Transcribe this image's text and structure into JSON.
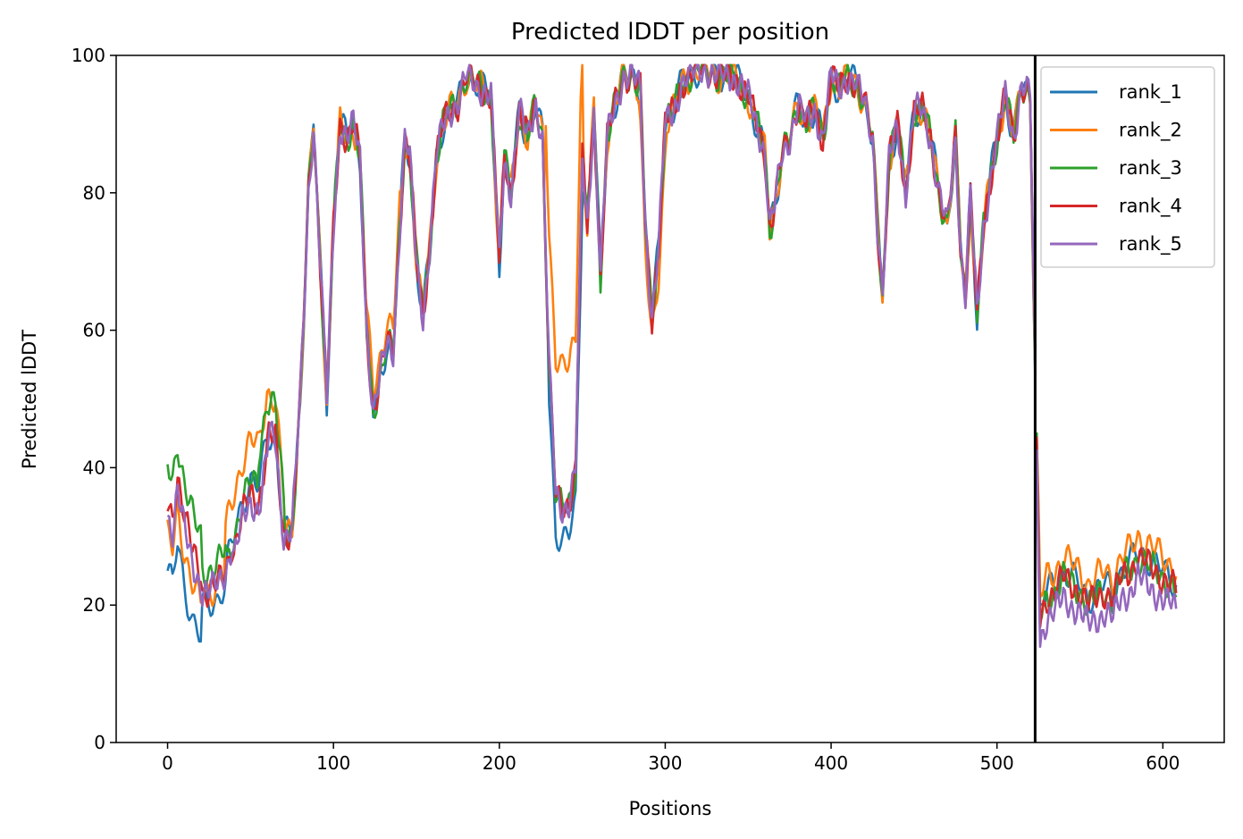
{
  "chart_data": {
    "type": "line",
    "title": "Predicted lDDT per position",
    "xlabel": "Positions",
    "ylabel": "Predicted lDDT",
    "xlim": [
      -31,
      637
    ],
    "ylim": [
      0,
      100
    ],
    "xticks": [
      0,
      100,
      200,
      300,
      400,
      500,
      600
    ],
    "yticks": [
      0,
      20,
      40,
      60,
      80,
      100
    ],
    "chain_break_x": 523,
    "legend_position": "top-right",
    "grid": false,
    "base_profile": {
      "x": [
        0,
        3,
        6,
        10,
        15,
        20,
        25,
        30,
        35,
        40,
        45,
        50,
        55,
        60,
        65,
        70,
        75,
        80,
        85,
        88,
        92,
        96,
        100,
        104,
        108,
        112,
        116,
        120,
        124,
        128,
        132,
        136,
        140,
        143,
        146,
        150,
        154,
        158,
        162,
        166,
        170,
        175,
        180,
        185,
        190,
        195,
        200,
        203,
        207,
        212,
        217,
        222,
        226,
        230,
        234,
        238,
        242,
        246,
        250,
        253,
        257,
        261,
        265,
        270,
        275,
        280,
        285,
        288,
        292,
        296,
        300,
        305,
        310,
        315,
        320,
        325,
        330,
        335,
        340,
        345,
        350,
        355,
        360,
        363,
        366,
        370,
        375,
        380,
        385,
        390,
        395,
        400,
        405,
        410,
        415,
        420,
        425,
        428,
        431,
        435,
        440,
        445,
        450,
        455,
        460,
        465,
        470,
        475,
        478,
        481,
        484,
        488,
        492,
        496,
        500,
        505,
        510,
        515,
        520,
        523,
        526,
        530,
        535,
        540,
        545,
        550,
        555,
        560,
        565,
        570,
        575,
        580,
        585,
        590,
        595,
        600,
        605,
        608
      ],
      "y": [
        32,
        30,
        36,
        30,
        25,
        22,
        22,
        23,
        25,
        30,
        35,
        38,
        37,
        45,
        44,
        30,
        31,
        50,
        80,
        90,
        70,
        50,
        75,
        90,
        88,
        90,
        85,
        60,
        48,
        53,
        58,
        57,
        75,
        88,
        85,
        70,
        62,
        72,
        85,
        90,
        92,
        93,
        97,
        96,
        95,
        94,
        70,
        85,
        80,
        92,
        88,
        93,
        88,
        55,
        36,
        34,
        35,
        40,
        85,
        75,
        92,
        68,
        88,
        93,
        97,
        97,
        95,
        75,
        62,
        72,
        90,
        92,
        96,
        97,
        98,
        98,
        97,
        97,
        97,
        96,
        94,
        90,
        86,
        75,
        78,
        85,
        88,
        93,
        90,
        92,
        88,
        97,
        95,
        97,
        96,
        93,
        88,
        75,
        65,
        85,
        90,
        80,
        92,
        92,
        88,
        80,
        75,
        88,
        72,
        65,
        80,
        62,
        75,
        82,
        88,
        94,
        88,
        96,
        94,
        55,
        18,
        21,
        22,
        24,
        23,
        22,
        20,
        21,
        22,
        21,
        24,
        25,
        27,
        26,
        25,
        24,
        23,
        22
      ]
    },
    "series": [
      {
        "name": "rank_1",
        "color": "#1f77b4"
      },
      {
        "name": "rank_2",
        "color": "#ff7f0e"
      },
      {
        "name": "rank_3",
        "color": "#2ca02c"
      },
      {
        "name": "rank_4",
        "color": "#d62728"
      },
      {
        "name": "rank_5",
        "color": "#9467bd"
      }
    ],
    "series_offsets": {
      "rank_1": {
        "0-20": -7,
        "20-35": -2,
        "230-250": -5,
        "525-608": 1
      },
      "rank_2": {
        "0-20": -2,
        "35-70": 6,
        "120-140": 3,
        "228-250": 20,
        "285-300": -4,
        "525-608": 3
      },
      "rank_3": {
        "0-20": 8,
        "20-35": 3,
        "55-70": 5,
        "525-608": 0
      },
      "rank_4": {
        "0-20": 3,
        "40-60": -2,
        "525-608": 0
      },
      "rank_5": {
        "0-20": 1,
        "40-60": -3,
        "525-608": -3
      }
    }
  }
}
